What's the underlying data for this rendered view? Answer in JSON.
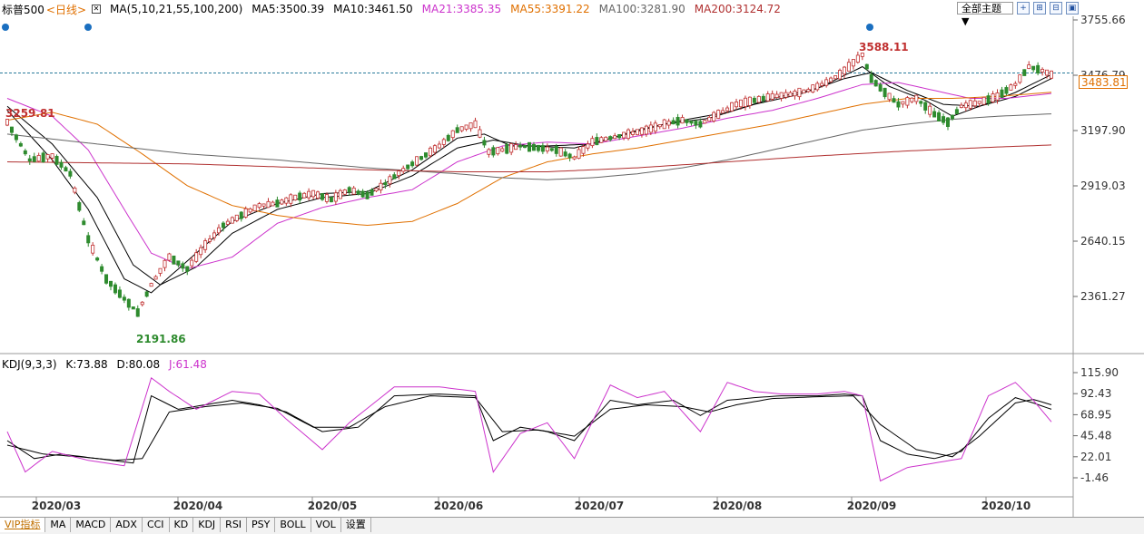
{
  "header": {
    "symbol": "标普500",
    "timeframe": "<日线>",
    "ma_label": "MA(5,10,21,55,100,200)",
    "ma5": "MA5:3500.39",
    "ma10": "MA10:3461.50",
    "ma21": "MA21:3385.35",
    "ma55": "MA55:3391.22",
    "ma100": "MA100:3281.90",
    "ma200": "MA200:3124.72",
    "theme_button": "全部主题 ▼"
  },
  "colors": {
    "ma5": "#000000",
    "ma10": "#000000",
    "ma21": "#cc33cc",
    "ma55": "#e07000",
    "ma100": "#666666",
    "ma200": "#b03030",
    "up": "#c03030",
    "down": "#2e8b2e",
    "k": "#000000",
    "d": "#000000",
    "j": "#cc33cc"
  },
  "kdj_header": {
    "label": "KDJ(9,3,3)",
    "k": "K:73.88",
    "d": "D:80.08",
    "j": "J:61.48"
  },
  "price_tag": "3483.81",
  "price_axis": [
    "3755.66",
    "3476.79",
    "3197.90",
    "2919.03",
    "2640.15",
    "2361.27"
  ],
  "kdj_axis": [
    "115.90",
    "92.43",
    "68.95",
    "45.48",
    "22.01",
    "-1.46"
  ],
  "date_axis": [
    "2020/03",
    "2020/04",
    "2020/05",
    "2020/06",
    "2020/07",
    "2020/08",
    "2020/09",
    "2020/10"
  ],
  "annotations": {
    "high": "3588.11",
    "low": "2191.86",
    "left": "3259.81"
  },
  "tabs": [
    "VIP指标",
    "MA",
    "MACD",
    "ADX",
    "CCI",
    "KD",
    "KDJ",
    "RSI",
    "PSY",
    "BOLL",
    "VOL",
    "设置"
  ],
  "chart_data": {
    "type": "candlestick",
    "ylim": [
      2250,
      3800
    ],
    "kdj_ylim": [
      -10,
      125
    ],
    "anchors": [
      {
        "i": 0,
        "v": 3240
      },
      {
        "i": 5,
        "v": 3050
      },
      {
        "i": 10,
        "v": 3070
      },
      {
        "i": 14,
        "v": 2980
      },
      {
        "i": 18,
        "v": 2650
      },
      {
        "i": 22,
        "v": 2450
      },
      {
        "i": 26,
        "v": 2350
      },
      {
        "i": 29,
        "v": 2280
      },
      {
        "i": 32,
        "v": 2420
      },
      {
        "i": 36,
        "v": 2560
      },
      {
        "i": 40,
        "v": 2500
      },
      {
        "i": 44,
        "v": 2620
      },
      {
        "i": 48,
        "v": 2720
      },
      {
        "i": 52,
        "v": 2770
      },
      {
        "i": 56,
        "v": 2820
      },
      {
        "i": 60,
        "v": 2830
      },
      {
        "i": 64,
        "v": 2860
      },
      {
        "i": 68,
        "v": 2880
      },
      {
        "i": 72,
        "v": 2850
      },
      {
        "i": 76,
        "v": 2900
      },
      {
        "i": 80,
        "v": 2870
      },
      {
        "i": 84,
        "v": 2930
      },
      {
        "i": 88,
        "v": 3000
      },
      {
        "i": 92,
        "v": 3060
      },
      {
        "i": 96,
        "v": 3120
      },
      {
        "i": 100,
        "v": 3200
      },
      {
        "i": 104,
        "v": 3230
      },
      {
        "i": 107,
        "v": 3090
      },
      {
        "i": 110,
        "v": 3100
      },
      {
        "i": 114,
        "v": 3120
      },
      {
        "i": 118,
        "v": 3110
      },
      {
        "i": 122,
        "v": 3100
      },
      {
        "i": 126,
        "v": 3060
      },
      {
        "i": 130,
        "v": 3140
      },
      {
        "i": 134,
        "v": 3160
      },
      {
        "i": 138,
        "v": 3180
      },
      {
        "i": 142,
        "v": 3200
      },
      {
        "i": 146,
        "v": 3230
      },
      {
        "i": 150,
        "v": 3250
      },
      {
        "i": 154,
        "v": 3230
      },
      {
        "i": 158,
        "v": 3280
      },
      {
        "i": 162,
        "v": 3330
      },
      {
        "i": 166,
        "v": 3350
      },
      {
        "i": 170,
        "v": 3370
      },
      {
        "i": 174,
        "v": 3380
      },
      {
        "i": 178,
        "v": 3400
      },
      {
        "i": 182,
        "v": 3440
      },
      {
        "i": 185,
        "v": 3480
      },
      {
        "i": 188,
        "v": 3540
      },
      {
        "i": 190,
        "v": 3580
      },
      {
        "i": 192,
        "v": 3460
      },
      {
        "i": 195,
        "v": 3390
      },
      {
        "i": 198,
        "v": 3330
      },
      {
        "i": 202,
        "v": 3360
      },
      {
        "i": 206,
        "v": 3280
      },
      {
        "i": 209,
        "v": 3240
      },
      {
        "i": 212,
        "v": 3320
      },
      {
        "i": 216,
        "v": 3340
      },
      {
        "i": 220,
        "v": 3370
      },
      {
        "i": 224,
        "v": 3430
      },
      {
        "i": 227,
        "v": 3520
      },
      {
        "i": 230,
        "v": 3500
      },
      {
        "i": 232,
        "v": 3480
      }
    ],
    "ma_lines": {
      "ma5": [
        [
          0,
          3300
        ],
        [
          10,
          3050
        ],
        [
          18,
          2800
        ],
        [
          26,
          2450
        ],
        [
          32,
          2380
        ],
        [
          40,
          2540
        ],
        [
          50,
          2740
        ],
        [
          60,
          2830
        ],
        [
          70,
          2880
        ],
        [
          80,
          2890
        ],
        [
          90,
          3000
        ],
        [
          100,
          3160
        ],
        [
          106,
          3180
        ],
        [
          112,
          3120
        ],
        [
          120,
          3120
        ],
        [
          130,
          3130
        ],
        [
          140,
          3200
        ],
        [
          150,
          3250
        ],
        [
          160,
          3290
        ],
        [
          170,
          3360
        ],
        [
          180,
          3410
        ],
        [
          190,
          3520
        ],
        [
          196,
          3420
        ],
        [
          204,
          3350
        ],
        [
          210,
          3270
        ],
        [
          216,
          3320
        ],
        [
          224,
          3390
        ],
        [
          232,
          3480
        ]
      ],
      "ma10": [
        [
          0,
          3320
        ],
        [
          10,
          3130
        ],
        [
          20,
          2860
        ],
        [
          28,
          2520
        ],
        [
          34,
          2420
        ],
        [
          42,
          2510
        ],
        [
          50,
          2680
        ],
        [
          60,
          2800
        ],
        [
          70,
          2860
        ],
        [
          80,
          2880
        ],
        [
          90,
          2970
        ],
        [
          100,
          3110
        ],
        [
          108,
          3150
        ],
        [
          116,
          3120
        ],
        [
          126,
          3110
        ],
        [
          136,
          3170
        ],
        [
          146,
          3230
        ],
        [
          156,
          3260
        ],
        [
          166,
          3330
        ],
        [
          176,
          3380
        ],
        [
          186,
          3460
        ],
        [
          192,
          3490
        ],
        [
          200,
          3400
        ],
        [
          208,
          3330
        ],
        [
          216,
          3320
        ],
        [
          224,
          3370
        ],
        [
          232,
          3460
        ]
      ],
      "ma21": [
        [
          0,
          3360
        ],
        [
          10,
          3270
        ],
        [
          18,
          3100
        ],
        [
          26,
          2800
        ],
        [
          32,
          2580
        ],
        [
          40,
          2500
        ],
        [
          50,
          2560
        ],
        [
          60,
          2730
        ],
        [
          70,
          2810
        ],
        [
          80,
          2860
        ],
        [
          90,
          2900
        ],
        [
          100,
          3040
        ],
        [
          110,
          3120
        ],
        [
          120,
          3140
        ],
        [
          130,
          3130
        ],
        [
          140,
          3170
        ],
        [
          150,
          3210
        ],
        [
          160,
          3260
        ],
        [
          170,
          3300
        ],
        [
          180,
          3360
        ],
        [
          190,
          3430
        ],
        [
          198,
          3440
        ],
        [
          206,
          3400
        ],
        [
          214,
          3360
        ],
        [
          222,
          3360
        ],
        [
          232,
          3385
        ]
      ],
      "ma55": [
        [
          0,
          3250
        ],
        [
          10,
          3290
        ],
        [
          20,
          3230
        ],
        [
          30,
          3080
        ],
        [
          40,
          2920
        ],
        [
          50,
          2820
        ],
        [
          60,
          2770
        ],
        [
          70,
          2740
        ],
        [
          80,
          2720
        ],
        [
          90,
          2740
        ],
        [
          100,
          2830
        ],
        [
          110,
          2960
        ],
        [
          120,
          3040
        ],
        [
          130,
          3080
        ],
        [
          140,
          3110
        ],
        [
          150,
          3150
        ],
        [
          160,
          3190
        ],
        [
          170,
          3230
        ],
        [
          180,
          3280
        ],
        [
          190,
          3330
        ],
        [
          200,
          3360
        ],
        [
          210,
          3360
        ],
        [
          220,
          3370
        ],
        [
          232,
          3391
        ]
      ],
      "ma100": [
        [
          0,
          3180
        ],
        [
          20,
          3130
        ],
        [
          40,
          3080
        ],
        [
          60,
          3050
        ],
        [
          80,
          3010
        ],
        [
          100,
          2980
        ],
        [
          110,
          2960
        ],
        [
          120,
          2950
        ],
        [
          130,
          2960
        ],
        [
          140,
          2980
        ],
        [
          150,
          3010
        ],
        [
          160,
          3050
        ],
        [
          170,
          3100
        ],
        [
          180,
          3150
        ],
        [
          190,
          3200
        ],
        [
          200,
          3230
        ],
        [
          210,
          3255
        ],
        [
          220,
          3270
        ],
        [
          232,
          3282
        ]
      ],
      "ma200": [
        [
          0,
          3040
        ],
        [
          40,
          3030
        ],
        [
          80,
          3000
        ],
        [
          100,
          2990
        ],
        [
          120,
          2990
        ],
        [
          140,
          3010
        ],
        [
          160,
          3040
        ],
        [
          180,
          3070
        ],
        [
          200,
          3095
        ],
        [
          220,
          3115
        ],
        [
          232,
          3125
        ]
      ]
    },
    "kdj": {
      "k": [
        [
          0,
          40
        ],
        [
          6,
          20
        ],
        [
          12,
          25
        ],
        [
          20,
          20
        ],
        [
          28,
          15
        ],
        [
          32,
          90
        ],
        [
          38,
          75
        ],
        [
          44,
          80
        ],
        [
          50,
          85
        ],
        [
          56,
          80
        ],
        [
          62,
          72
        ],
        [
          70,
          50
        ],
        [
          78,
          55
        ],
        [
          86,
          90
        ],
        [
          96,
          92
        ],
        [
          104,
          90
        ],
        [
          108,
          40
        ],
        [
          114,
          55
        ],
        [
          120,
          50
        ],
        [
          126,
          40
        ],
        [
          134,
          85
        ],
        [
          140,
          80
        ],
        [
          148,
          85
        ],
        [
          154,
          68
        ],
        [
          160,
          85
        ],
        [
          166,
          88
        ],
        [
          172,
          90
        ],
        [
          180,
          90
        ],
        [
          186,
          92
        ],
        [
          190,
          90
        ],
        [
          194,
          40
        ],
        [
          200,
          25
        ],
        [
          206,
          20
        ],
        [
          212,
          28
        ],
        [
          218,
          65
        ],
        [
          224,
          88
        ],
        [
          228,
          82
        ],
        [
          232,
          75
        ]
      ],
      "d": [
        [
          0,
          35
        ],
        [
          8,
          25
        ],
        [
          16,
          22
        ],
        [
          24,
          18
        ],
        [
          30,
          20
        ],
        [
          36,
          72
        ],
        [
          44,
          78
        ],
        [
          52,
          82
        ],
        [
          60,
          76
        ],
        [
          68,
          55
        ],
        [
          76,
          55
        ],
        [
          84,
          78
        ],
        [
          94,
          90
        ],
        [
          104,
          88
        ],
        [
          110,
          50
        ],
        [
          118,
          52
        ],
        [
          126,
          45
        ],
        [
          134,
          75
        ],
        [
          142,
          80
        ],
        [
          150,
          78
        ],
        [
          156,
          72
        ],
        [
          162,
          80
        ],
        [
          170,
          87
        ],
        [
          180,
          89
        ],
        [
          188,
          90
        ],
        [
          194,
          58
        ],
        [
          202,
          30
        ],
        [
          210,
          22
        ],
        [
          216,
          45
        ],
        [
          224,
          82
        ],
        [
          228,
          86
        ],
        [
          232,
          80
        ]
      ],
      "j": [
        [
          0,
          50
        ],
        [
          4,
          5
        ],
        [
          10,
          28
        ],
        [
          18,
          18
        ],
        [
          26,
          12
        ],
        [
          32,
          110
        ],
        [
          36,
          95
        ],
        [
          42,
          75
        ],
        [
          50,
          95
        ],
        [
          56,
          92
        ],
        [
          62,
          64
        ],
        [
          70,
          30
        ],
        [
          76,
          60
        ],
        [
          86,
          100
        ],
        [
          96,
          100
        ],
        [
          104,
          95
        ],
        [
          108,
          5
        ],
        [
          114,
          48
        ],
        [
          120,
          60
        ],
        [
          126,
          20
        ],
        [
          134,
          102
        ],
        [
          140,
          88
        ],
        [
          146,
          95
        ],
        [
          154,
          50
        ],
        [
          160,
          105
        ],
        [
          166,
          95
        ],
        [
          172,
          92
        ],
        [
          180,
          92
        ],
        [
          186,
          95
        ],
        [
          190,
          90
        ],
        [
          194,
          -5
        ],
        [
          200,
          10
        ],
        [
          206,
          15
        ],
        [
          212,
          20
        ],
        [
          218,
          90
        ],
        [
          224,
          105
        ],
        [
          228,
          85
        ],
        [
          232,
          61
        ]
      ]
    }
  }
}
